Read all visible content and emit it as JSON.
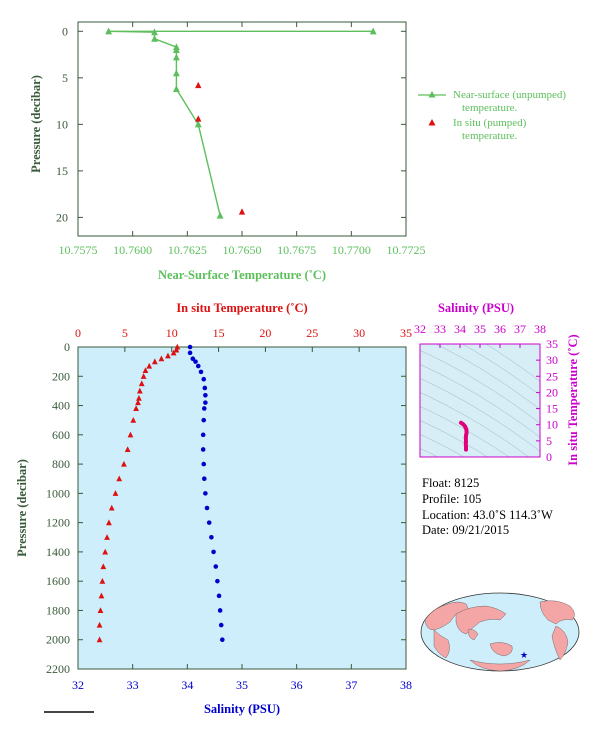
{
  "colors": {
    "green": "#5cbf5c",
    "red": "#dd1111",
    "blue": "#0000cc",
    "magenta": "#cc00cc",
    "axis_dark": "#3a5a3a",
    "panel_bg": "#cdeefa",
    "land": "#f4a6a6",
    "ocean": "#cdeefa"
  },
  "chart_data": [
    {
      "type": "line",
      "xlabel": "Near-Surface Temperature (˚C)",
      "ylabel": "Pressure (decibar)",
      "xlim": [
        10.7575,
        10.7725
      ],
      "ylim": [
        22,
        -1
      ],
      "x_ticks": [
        "10.7575",
        "10.7600",
        "10.7625",
        "10.7650",
        "10.7675",
        "10.7700",
        "10.7725"
      ],
      "y_ticks": [
        "0",
        "5",
        "10",
        "15",
        "20"
      ],
      "series": [
        {
          "name": "Near-surface (unpumped) temperature.",
          "marker": "triangle-line",
          "points": [
            [
              10.771,
              0.0
            ],
            [
              10.7589,
              0.0
            ],
            [
              10.761,
              0.1
            ],
            [
              10.761,
              0.8
            ],
            [
              10.762,
              1.7
            ],
            [
              10.762,
              2.0
            ],
            [
              10.762,
              2.8
            ],
            [
              10.762,
              4.5
            ],
            [
              10.762,
              6.2
            ],
            [
              10.763,
              10.0
            ],
            [
              10.764,
              19.8
            ]
          ]
        },
        {
          "name": "In situ (pumped) temperature.",
          "marker": "triangle",
          "points": [
            [
              10.763,
              5.8
            ],
            [
              10.763,
              9.4
            ],
            [
              10.765,
              19.4
            ]
          ]
        }
      ]
    },
    {
      "type": "scatter",
      "top_xlabel": "In situ Temperature (˚C)",
      "bottom_xlabel": "Salinity (PSU)",
      "ylabel": "Pressure (decibar)",
      "temp_ticks": [
        "0",
        "5",
        "10",
        "15",
        "20",
        "25",
        "30",
        "35"
      ],
      "sal_ticks": [
        "32",
        "33",
        "34",
        "35",
        "36",
        "37",
        "38"
      ],
      "p_ticks": [
        "0",
        "200",
        "400",
        "600",
        "800",
        "1000",
        "1200",
        "1400",
        "1600",
        "1800",
        "2000",
        "2200"
      ],
      "temp_lim": [
        0,
        35
      ],
      "sal_lim": [
        32,
        38
      ],
      "p_lim": [
        0,
        2200
      ],
      "series": [
        {
          "name": "In situ Temperature",
          "marker": "triangle",
          "points": [
            [
              10.6,
              0
            ],
            [
              10.5,
              20
            ],
            [
              10.2,
              40
            ],
            [
              9.6,
              60
            ],
            [
              8.9,
              80
            ],
            [
              8.2,
              100
            ],
            [
              7.6,
              130
            ],
            [
              7.2,
              160
            ],
            [
              7.0,
              200
            ],
            [
              6.8,
              250
            ],
            [
              6.6,
              300
            ],
            [
              6.5,
              350
            ],
            [
              6.4,
              380
            ],
            [
              6.2,
              420
            ],
            [
              5.9,
              500
            ],
            [
              5.6,
              600
            ],
            [
              5.3,
              700
            ],
            [
              4.9,
              800
            ],
            [
              4.4,
              900
            ],
            [
              4.0,
              1000
            ],
            [
              3.6,
              1100
            ],
            [
              3.3,
              1200
            ],
            [
              3.1,
              1300
            ],
            [
              2.9,
              1400
            ],
            [
              2.7,
              1500
            ],
            [
              2.6,
              1600
            ],
            [
              2.5,
              1700
            ],
            [
              2.4,
              1800
            ],
            [
              2.3,
              1900
            ],
            [
              2.3,
              2000
            ]
          ]
        },
        {
          "name": "Salinity",
          "marker": "dot",
          "points": [
            [
              34.05,
              0
            ],
            [
              34.05,
              40
            ],
            [
              34.1,
              80
            ],
            [
              34.15,
              100
            ],
            [
              34.2,
              130
            ],
            [
              34.25,
              170
            ],
            [
              34.3,
              220
            ],
            [
              34.32,
              280
            ],
            [
              34.33,
              330
            ],
            [
              34.33,
              380
            ],
            [
              34.31,
              420
            ],
            [
              34.3,
              500
            ],
            [
              34.29,
              600
            ],
            [
              34.29,
              700
            ],
            [
              34.3,
              800
            ],
            [
              34.31,
              900
            ],
            [
              34.33,
              1000
            ],
            [
              34.36,
              1100
            ],
            [
              34.4,
              1200
            ],
            [
              34.44,
              1300
            ],
            [
              34.48,
              1400
            ],
            [
              34.52,
              1500
            ],
            [
              34.55,
              1600
            ],
            [
              34.58,
              1700
            ],
            [
              34.6,
              1800
            ],
            [
              34.62,
              1900
            ],
            [
              34.64,
              2000
            ]
          ]
        }
      ]
    },
    {
      "type": "scatter",
      "top_xlabel": "Salinity (PSU)",
      "right_ylabel": "In situ Temperature (˚C)",
      "sal_ticks": [
        "32",
        "33",
        "34",
        "35",
        "36",
        "37",
        "38"
      ],
      "temp_ticks": [
        "0",
        "5",
        "10",
        "15",
        "20",
        "25",
        "30",
        "35"
      ],
      "sal_lim": [
        32,
        38
      ],
      "temp_lim": [
        0,
        35
      ],
      "series": [
        {
          "name": "T-S",
          "points": [
            [
              34.3,
              2.3
            ],
            [
              34.3,
              3.0
            ],
            [
              34.29,
              4.0
            ],
            [
              34.3,
              5.0
            ],
            [
              34.29,
              6.0
            ],
            [
              34.31,
              7.0
            ],
            [
              34.33,
              7.5
            ],
            [
              34.32,
              8.5
            ],
            [
              34.25,
              9.5
            ],
            [
              34.15,
              10.2
            ],
            [
              34.05,
              10.6
            ]
          ]
        }
      ]
    }
  ],
  "info": {
    "float": "Float:  8125",
    "profile": "Profile:  105",
    "location": "Location:  43.0˚S  114.3˚W",
    "date": "Date:  09/21/2015"
  },
  "map": {
    "marker": "★"
  }
}
